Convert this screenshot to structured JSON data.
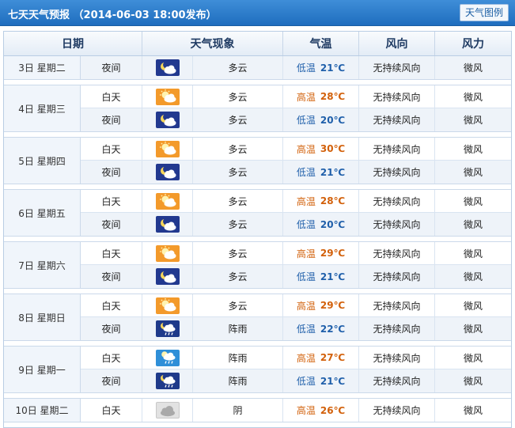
{
  "header": {
    "title": "七天天气预报 （2014-06-03 18:00发布）",
    "legend_button": "天气图例"
  },
  "table": {
    "columns": [
      "日期",
      "天气现象",
      "气温",
      "风向",
      "风力"
    ]
  },
  "days": [
    {
      "date": "3日 星期二",
      "periods": [
        {
          "period": "夜间",
          "icon": "partly-cloudy-night-icon",
          "weather": "多云",
          "temp_label": "低温",
          "temp": "21℃",
          "wind_dir": "无持续风向",
          "wind_force": "微风",
          "kind": "low"
        }
      ]
    },
    {
      "date": "4日 星期三",
      "periods": [
        {
          "period": "白天",
          "icon": "partly-cloudy-day-icon",
          "weather": "多云",
          "temp_label": "高温",
          "temp": "28℃",
          "wind_dir": "无持续风向",
          "wind_force": "微风",
          "kind": "high"
        },
        {
          "period": "夜间",
          "icon": "partly-cloudy-night-icon",
          "weather": "多云",
          "temp_label": "低温",
          "temp": "20℃",
          "wind_dir": "无持续风向",
          "wind_force": "微风",
          "kind": "low"
        }
      ]
    },
    {
      "date": "5日 星期四",
      "periods": [
        {
          "period": "白天",
          "icon": "partly-cloudy-day-icon",
          "weather": "多云",
          "temp_label": "高温",
          "temp": "30℃",
          "wind_dir": "无持续风向",
          "wind_force": "微风",
          "kind": "high"
        },
        {
          "period": "夜间",
          "icon": "partly-cloudy-night-icon",
          "weather": "多云",
          "temp_label": "低温",
          "temp": "21℃",
          "wind_dir": "无持续风向",
          "wind_force": "微风",
          "kind": "low"
        }
      ]
    },
    {
      "date": "6日 星期五",
      "periods": [
        {
          "period": "白天",
          "icon": "partly-cloudy-day-icon",
          "weather": "多云",
          "temp_label": "高温",
          "temp": "28℃",
          "wind_dir": "无持续风向",
          "wind_force": "微风",
          "kind": "high"
        },
        {
          "period": "夜间",
          "icon": "partly-cloudy-night-icon",
          "weather": "多云",
          "temp_label": "低温",
          "temp": "20℃",
          "wind_dir": "无持续风向",
          "wind_force": "微风",
          "kind": "low"
        }
      ]
    },
    {
      "date": "7日 星期六",
      "periods": [
        {
          "period": "白天",
          "icon": "partly-cloudy-day-icon",
          "weather": "多云",
          "temp_label": "高温",
          "temp": "29℃",
          "wind_dir": "无持续风向",
          "wind_force": "微风",
          "kind": "high"
        },
        {
          "period": "夜间",
          "icon": "partly-cloudy-night-icon",
          "weather": "多云",
          "temp_label": "低温",
          "temp": "21℃",
          "wind_dir": "无持续风向",
          "wind_force": "微风",
          "kind": "low"
        }
      ]
    },
    {
      "date": "8日 星期日",
      "periods": [
        {
          "period": "白天",
          "icon": "partly-cloudy-day-icon",
          "weather": "多云",
          "temp_label": "高温",
          "temp": "29℃",
          "wind_dir": "无持续风向",
          "wind_force": "微风",
          "kind": "high"
        },
        {
          "period": "夜间",
          "icon": "showers-night-icon",
          "weather": "阵雨",
          "temp_label": "低温",
          "temp": "22℃",
          "wind_dir": "无持续风向",
          "wind_force": "微风",
          "kind": "low"
        }
      ]
    },
    {
      "date": "9日 星期一",
      "periods": [
        {
          "period": "白天",
          "icon": "showers-day-icon",
          "weather": "阵雨",
          "temp_label": "高温",
          "temp": "27℃",
          "wind_dir": "无持续风向",
          "wind_force": "微风",
          "kind": "high"
        },
        {
          "period": "夜间",
          "icon": "showers-night-icon",
          "weather": "阵雨",
          "temp_label": "低温",
          "temp": "21℃",
          "wind_dir": "无持续风向",
          "wind_force": "微风",
          "kind": "low"
        }
      ]
    },
    {
      "date": "10日 星期二",
      "periods": [
        {
          "period": "白天",
          "icon": "overcast-icon",
          "weather": "阴",
          "temp_label": "高温",
          "temp": "26℃",
          "wind_dir": "无持续风向",
          "wind_force": "微风",
          "kind": "high"
        }
      ]
    }
  ]
}
